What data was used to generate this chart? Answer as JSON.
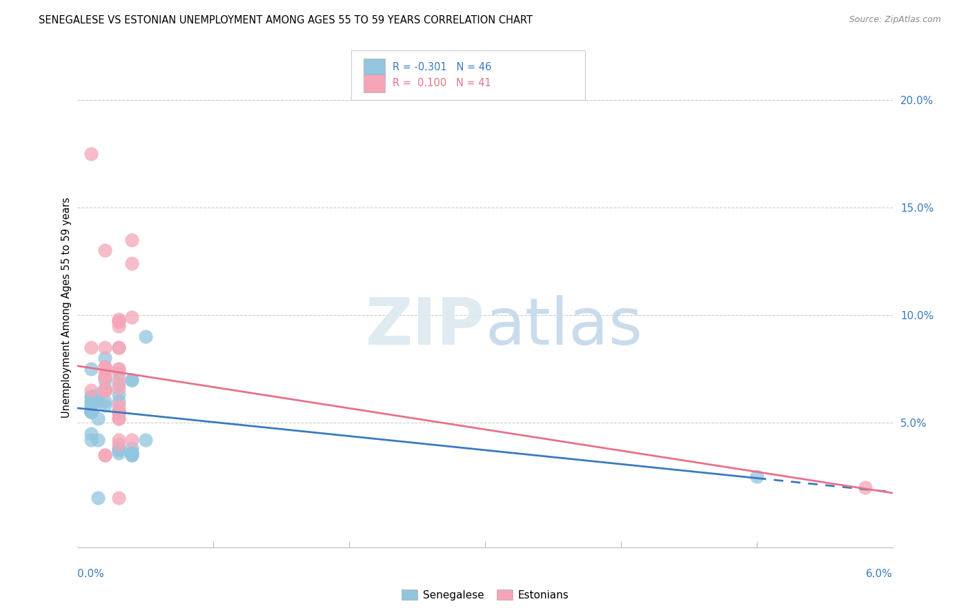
{
  "title": "SENEGALESE VS ESTONIAN UNEMPLOYMENT AMONG AGES 55 TO 59 YEARS CORRELATION CHART",
  "source": "Source: ZipAtlas.com",
  "ylabel": "Unemployment Among Ages 55 to 59 years",
  "ylabel_right_ticks": [
    "20.0%",
    "15.0%",
    "10.0%",
    "5.0%"
  ],
  "ylabel_right_vals": [
    0.2,
    0.15,
    0.1,
    0.05
  ],
  "xmin": 0.0,
  "xmax": 0.06,
  "ymin": -0.008,
  "ymax": 0.215,
  "blue_color": "#92c5de",
  "pink_color": "#f4a6b8",
  "blue_line_color": "#3a7abf",
  "pink_line_color": "#e8708a",
  "senegalese_x": [
    0.003,
    0.0015,
    0.003,
    0.005,
    0.001,
    0.0015,
    0.004,
    0.001,
    0.001,
    0.003,
    0.004,
    0.0015,
    0.001,
    0.001,
    0.001,
    0.001,
    0.001,
    0.002,
    0.001,
    0.002,
    0.001,
    0.001,
    0.002,
    0.003,
    0.002,
    0.001,
    0.002,
    0.001,
    0.002,
    0.003,
    0.003,
    0.003,
    0.0015,
    0.003,
    0.004,
    0.003,
    0.004,
    0.002,
    0.004,
    0.005,
    0.004,
    0.003,
    0.0015,
    0.001,
    0.004,
    0.05
  ],
  "senegalese_y": [
    0.073,
    0.063,
    0.063,
    0.09,
    0.045,
    0.052,
    0.07,
    0.06,
    0.062,
    0.06,
    0.07,
    0.06,
    0.055,
    0.055,
    0.062,
    0.055,
    0.055,
    0.065,
    0.06,
    0.06,
    0.058,
    0.058,
    0.07,
    0.068,
    0.065,
    0.055,
    0.08,
    0.075,
    0.066,
    0.055,
    0.055,
    0.055,
    0.042,
    0.037,
    0.035,
    0.036,
    0.036,
    0.058,
    0.035,
    0.042,
    0.038,
    0.038,
    0.015,
    0.042,
    0.036,
    0.025
  ],
  "estonian_x": [
    0.001,
    0.001,
    0.002,
    0.001,
    0.002,
    0.003,
    0.003,
    0.003,
    0.004,
    0.003,
    0.002,
    0.002,
    0.002,
    0.002,
    0.003,
    0.002,
    0.003,
    0.002,
    0.002,
    0.002,
    0.003,
    0.004,
    0.003,
    0.003,
    0.003,
    0.003,
    0.003,
    0.004,
    0.003,
    0.003,
    0.003,
    0.004,
    0.003,
    0.002,
    0.002,
    0.003,
    0.003,
    0.003,
    0.003,
    0.003,
    0.058
  ],
  "estonian_y": [
    0.065,
    0.175,
    0.065,
    0.085,
    0.13,
    0.095,
    0.097,
    0.097,
    0.099,
    0.098,
    0.076,
    0.076,
    0.073,
    0.085,
    0.085,
    0.071,
    0.075,
    0.071,
    0.065,
    0.065,
    0.085,
    0.124,
    0.055,
    0.055,
    0.055,
    0.058,
    0.04,
    0.042,
    0.042,
    0.052,
    0.052,
    0.135,
    0.075,
    0.035,
    0.035,
    0.055,
    0.055,
    0.015,
    0.07,
    0.066,
    0.02
  ]
}
